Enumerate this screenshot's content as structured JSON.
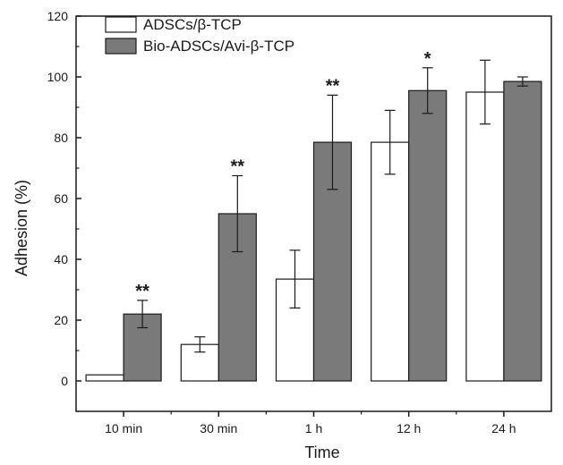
{
  "chart_data": {
    "type": "bar",
    "title": "",
    "xlabel": "Time",
    "ylabel": "Adhesion (%)",
    "ylim": [
      -10,
      120
    ],
    "yticks": [
      0,
      20,
      40,
      60,
      80,
      100,
      120
    ],
    "categories": [
      "10 min",
      "30 min",
      "1 h",
      "12 h",
      "24 h"
    ],
    "grid": false,
    "legend_position": "top-left",
    "series": [
      {
        "name": "ADSCs/β-TCP",
        "color": "#ffffff",
        "values": [
          2,
          12,
          33.5,
          78.5,
          95
        ],
        "errors": [
          0,
          2.5,
          9.5,
          10.5,
          10.5
        ]
      },
      {
        "name": "Bio-ADSCs/Avi-β-TCP",
        "color": "#7a7a7a",
        "values": [
          22,
          55,
          78.5,
          95.5,
          98.5
        ],
        "errors": [
          4.5,
          12.5,
          15.5,
          7.5,
          1.5
        ]
      }
    ],
    "annotations": [
      "**",
      "**",
      "**",
      "*",
      ""
    ]
  }
}
